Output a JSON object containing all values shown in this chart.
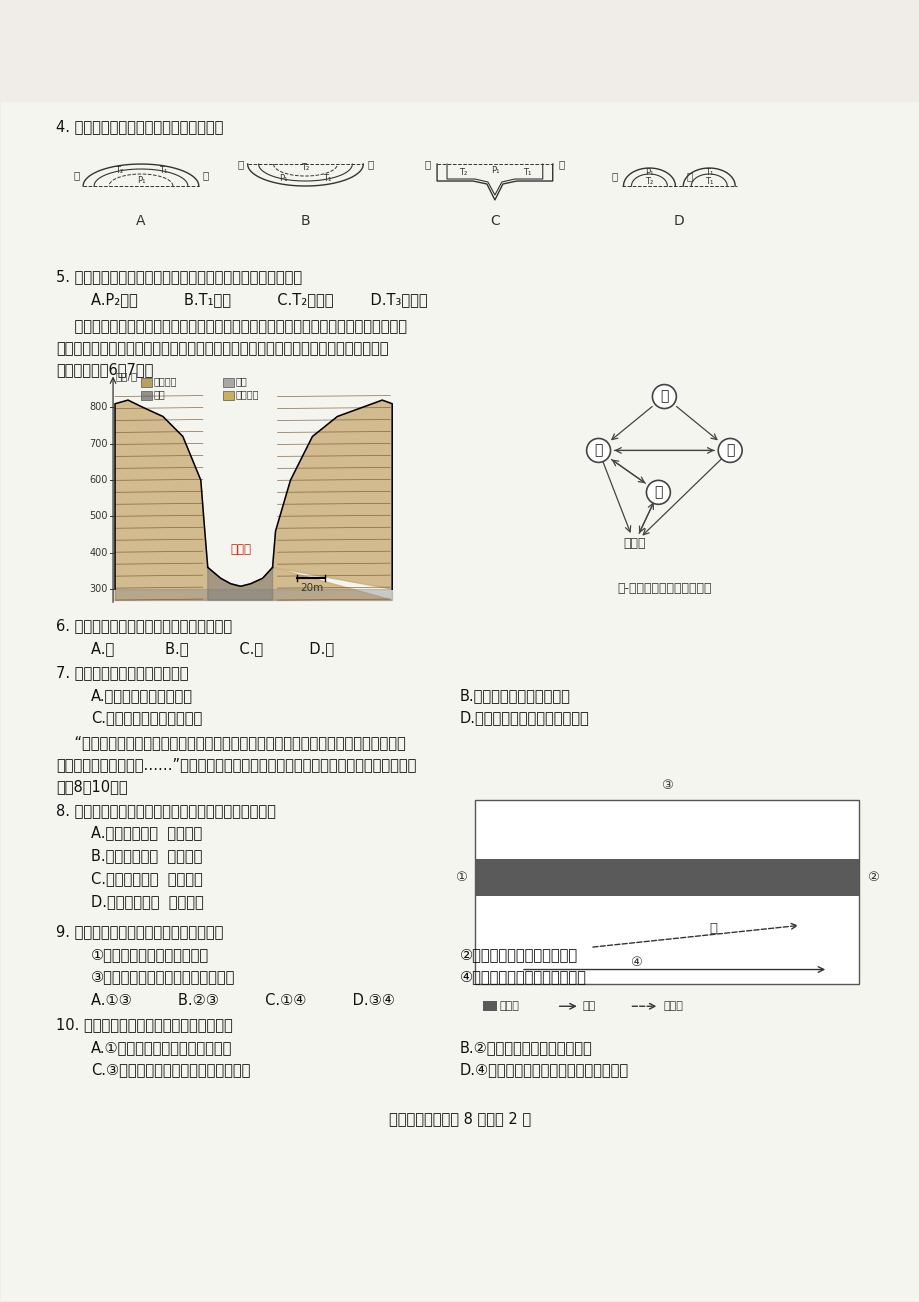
{
  "bg_color": "#f0ede8",
  "page_color": "#f5f5f0",
  "text_color": "#1a1a1a",
  "page_width": 9.2,
  "page_height": 13.02,
  "q4_text": "4. 从甲地到乙地的地形地质剖面示意图是",
  "q5_text": "5. 为揭示深部地质状况，在丙处垂直钒探，可能发现的地层是",
  "q5_opts": "A.P₂砂岩          B.T₁泥岩          C.T₂泥炭岩        D.T₃石灿岩",
  "para1_line1": "    红石峡两岸红色岩石岀立，谷底飞瀑幽溪，是我国北方地区少有的丹霞地貌峡谷景观，",
  "para1_line2": "峡谷中曾发现寒武纪晚期海生生物化石。下图分别示意红石峡谷横剖面和岩石图物质循",
  "para1_line3": "环。据此完戀6～7题。",
  "q6_text": "6. 红石峡两岸的红色岩石，按成因分类属于",
  "q6_opts": "A.甲           B.乙           C.丙          D.丁",
  "q7_text": "7. 关于该区域的叙述，正确的是",
  "q7_A": "A.该区域地壳间歇性抬升",
  "q7_B": "B.红石峡形成时期气候暖干",
  "q7_C": "C.红石峡上部岩层保存完好",
  "q7_D": "D.砂砾石层是谷内岩石风化而成",
  "para2_line1": "    “这是一条神秘而又奇特的纬线，这条纬线贯穿四大文明古国，沿线上有巍峨的珠穆朗",
  "para2_line2": "玛峤，有广袊的撒哈拉……”。下图示意控制该纬线的气压带及附近风带、洋流分布。据此",
  "para2_line3": "完戀8～10题。",
  "q8_text": "8. 控制该纬线的气压带，其气流运动状况及气候特点是",
  "q8_A": "A.动力原因上升  温和湿润",
  "q8_B": "B.热力原因上升  寒冷干燥",
  "q8_C": "C.动力原因下沉  炎热干燥",
  "q8_D": "D.热力原因下沉  高温多雨",
  "q9_text": "9. 下列景观类型的形成与甲风带有关的是",
  "q9_1": "①撒哈拉沙漠的热带荒漠景观",
  "q9_2": "②印度半岛的热带季雨林景观",
  "q9_3": "③赤道地区东非高原的热带草原景观",
  "q9_4": "④中美洲东北部的热带雨林景观",
  "q9_opts": "A.①③          B.②③          C.①④          D.③④",
  "q10_text": "10. 关于图中洋流及其影响，叙述正确的是",
  "q10_A": "A.①洋流使流经海区海水盐度减小",
  "q10_B": "B.②洋流流经海区较易形成渔场",
  "q10_C": "C.③洋流与西风漂流的成因、性质相同",
  "q10_D": "D.④洋流利于污染物扩散，加剧污染程度",
  "footer": "高二地理试题（共 8 页）第 2 页"
}
